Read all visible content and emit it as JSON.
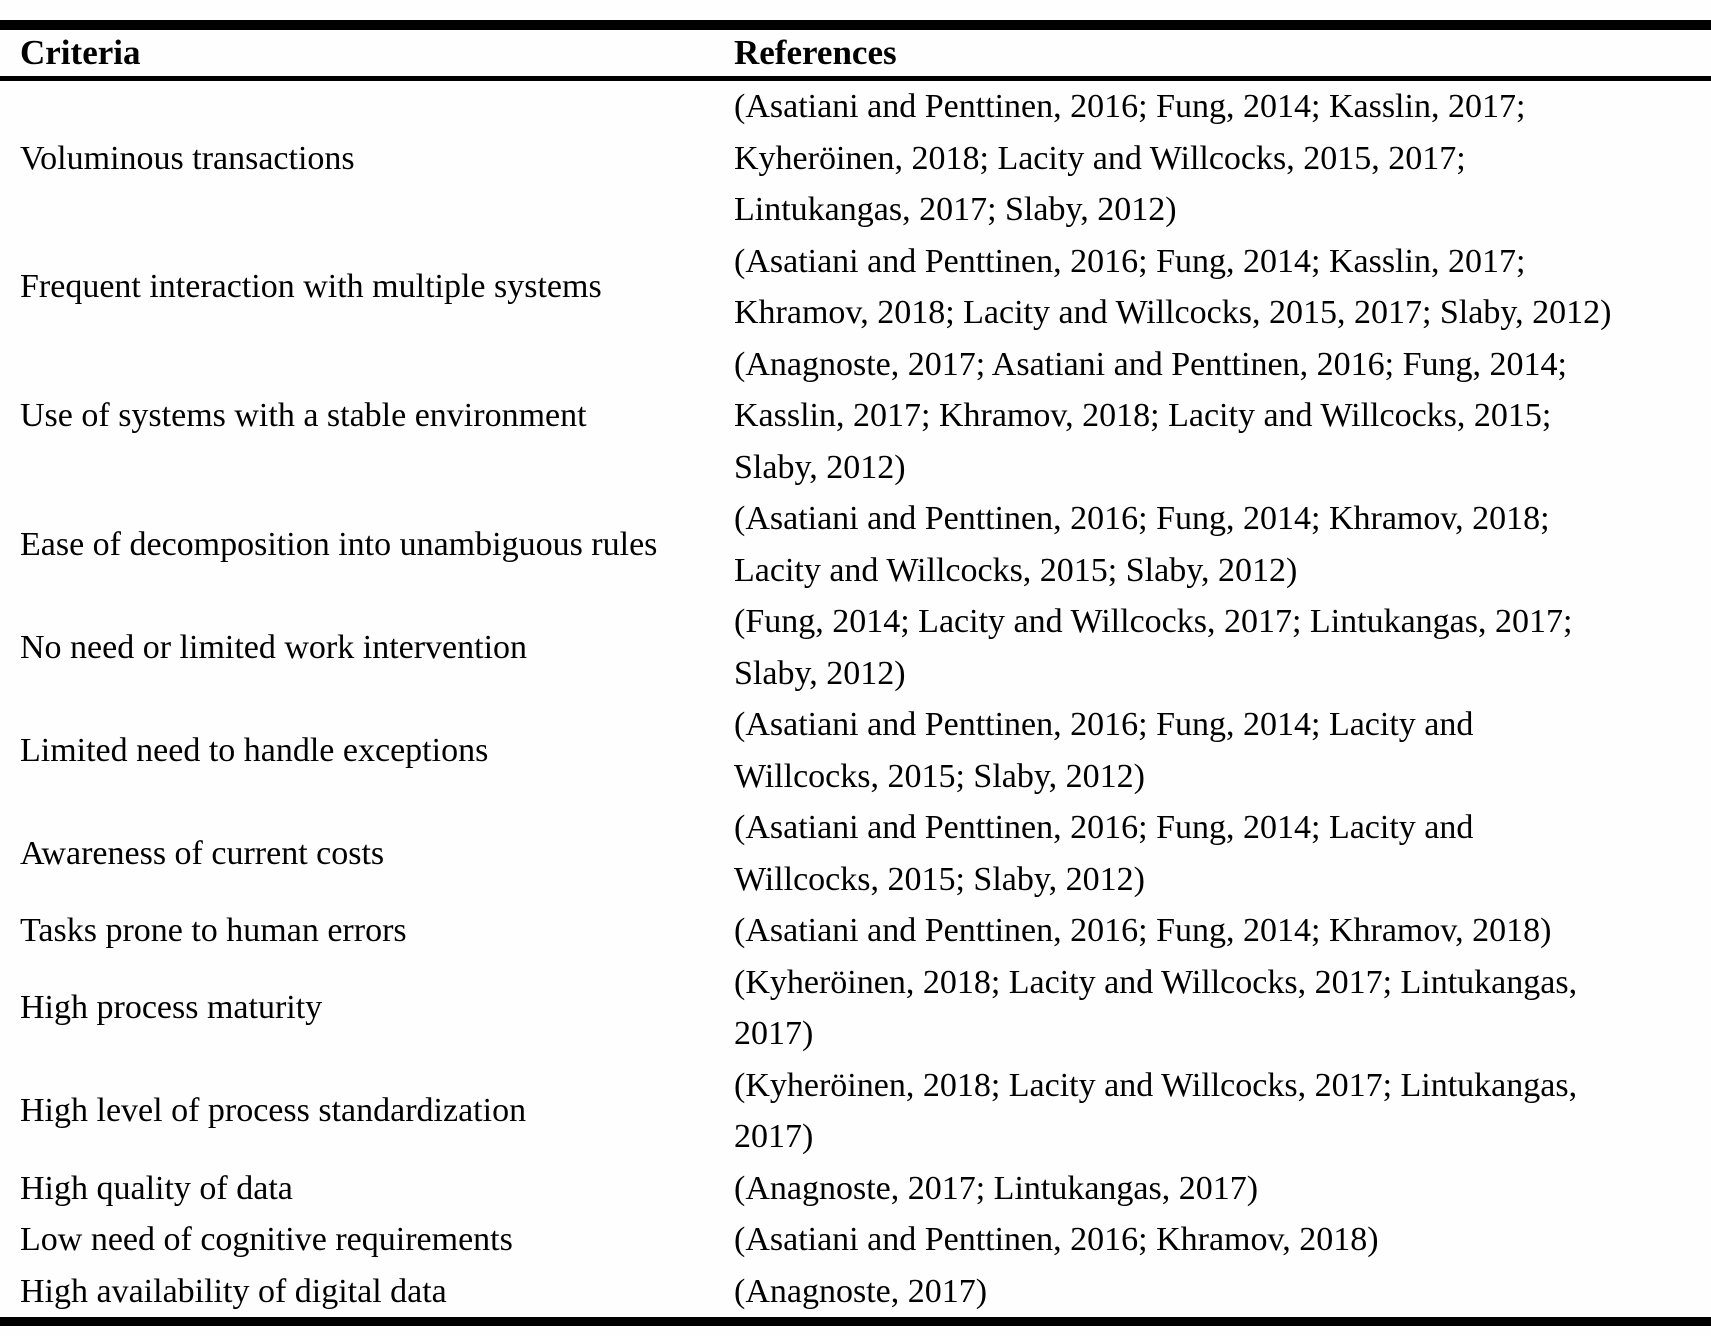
{
  "table": {
    "headers": [
      "Criteria",
      "References"
    ],
    "rows": [
      {
        "criteria": "Voluminous transactions",
        "reference_lines": [
          "(Asatiani and Penttinen, 2016; Fung, 2014; Kasslin, 2017;",
          "Kyheröinen, 2018; Lacity and Willcocks, 2015, 2017;",
          "Lintukangas, 2017; Slaby, 2012)"
        ]
      },
      {
        "criteria": "Frequent interaction with multiple systems",
        "reference_lines": [
          "(Asatiani and Penttinen, 2016; Fung, 2014; Kasslin, 2017;",
          "Khramov, 2018; Lacity and Willcocks, 2015, 2017; Slaby, 2012)"
        ]
      },
      {
        "criteria": "Use of systems with a stable environment",
        "reference_lines": [
          "(Anagnoste, 2017; Asatiani and Penttinen, 2016; Fung, 2014;",
          "Kasslin, 2017; Khramov, 2018; Lacity and Willcocks, 2015;",
          "Slaby, 2012)"
        ]
      },
      {
        "criteria": "Ease of decomposition into unambiguous rules",
        "reference_lines": [
          "(Asatiani and Penttinen, 2016; Fung, 2014; Khramov, 2018;",
          "Lacity and Willcocks, 2015; Slaby, 2012)"
        ]
      },
      {
        "criteria": "No need or limited work intervention",
        "reference_lines": [
          "(Fung, 2014; Lacity and Willcocks, 2017; Lintukangas, 2017;",
          "Slaby, 2012)"
        ]
      },
      {
        "criteria": "Limited need to handle exceptions",
        "reference_lines": [
          "(Asatiani and Penttinen, 2016; Fung, 2014; Lacity and",
          "Willcocks, 2015; Slaby, 2012)"
        ]
      },
      {
        "criteria": "Awareness of current costs",
        "reference_lines": [
          "(Asatiani and Penttinen, 2016; Fung, 2014; Lacity and",
          "Willcocks, 2015; Slaby, 2012)"
        ]
      },
      {
        "criteria": "Tasks prone to human errors",
        "reference_lines": [
          "(Asatiani and Penttinen, 2016; Fung, 2014; Khramov, 2018)"
        ]
      },
      {
        "criteria": "High process maturity",
        "reference_lines": [
          "(Kyheröinen, 2018; Lacity and Willcocks, 2017; Lintukangas,",
          "2017)"
        ]
      },
      {
        "criteria": "High level of process standardization",
        "reference_lines": [
          "(Kyheröinen, 2018; Lacity and Willcocks, 2017; Lintukangas,",
          "2017)"
        ]
      },
      {
        "criteria": "High quality of data",
        "reference_lines": [
          "(Anagnoste, 2017; Lintukangas, 2017)"
        ]
      },
      {
        "criteria": "Low need of cognitive requirements",
        "reference_lines": [
          "(Asatiani and Penttinen, 2016; Khramov, 2018)"
        ]
      },
      {
        "criteria": "High availability of digital data",
        "reference_lines": [
          "(Anagnoste, 2017)"
        ]
      }
    ]
  }
}
